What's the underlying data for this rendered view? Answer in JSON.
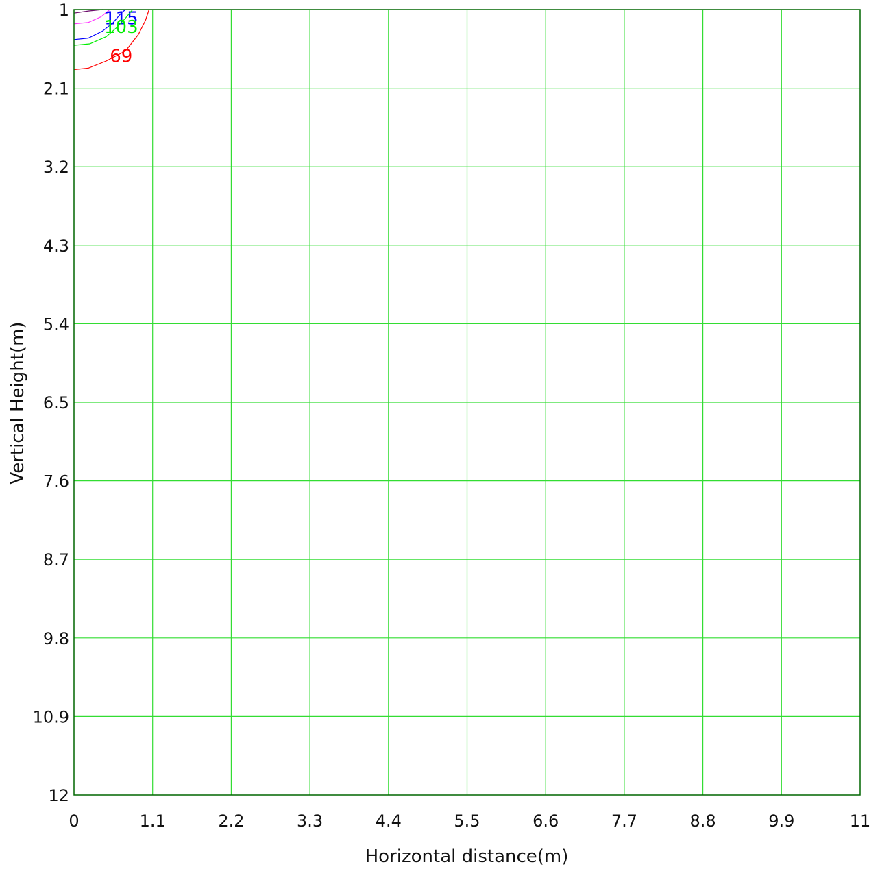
{
  "chart_data": {
    "type": "contour",
    "xlabel": "Horizontal distance(m)",
    "ylabel": "Vertical Height(m)",
    "xlim": [
      0,
      11
    ],
    "ylim": [
      1,
      12
    ],
    "y_axis_inverted": true,
    "grid": true,
    "grid_color": "#33dd33",
    "frame_color": "#006600",
    "x_ticks": [
      "0",
      "1.1",
      "2.2",
      "3.3",
      "4.4",
      "5.5",
      "6.6",
      "7.7",
      "8.8",
      "9.9",
      "11"
    ],
    "y_ticks": [
      "1",
      "2.1",
      "3.2",
      "4.3",
      "5.4",
      "6.5",
      "7.6",
      "8.7",
      "9.8",
      "10.9",
      "12"
    ],
    "contours": [
      {
        "label": "",
        "color": "#6a0a6a",
        "points": [
          [
            0,
            1.05
          ],
          [
            0.2,
            1.02
          ],
          [
            0.4,
            1.0
          ]
        ]
      },
      {
        "label": "",
        "color": "#ff33ff",
        "points": [
          [
            0,
            1.2
          ],
          [
            0.2,
            1.18
          ],
          [
            0.38,
            1.1
          ],
          [
            0.5,
            1.0
          ]
        ]
      },
      {
        "label": "115",
        "color": "#0000ff",
        "label_at": [
          0.66,
          1.12
        ],
        "points": [
          [
            0,
            1.42
          ],
          [
            0.2,
            1.4
          ],
          [
            0.4,
            1.3
          ],
          [
            0.55,
            1.18
          ],
          [
            0.66,
            1.05
          ],
          [
            0.72,
            1.0
          ]
        ]
      },
      {
        "label": "103",
        "color": "#00ee00",
        "label_at": [
          0.66,
          1.24
        ],
        "points": [
          [
            0,
            1.5
          ],
          [
            0.22,
            1.48
          ],
          [
            0.45,
            1.38
          ],
          [
            0.6,
            1.25
          ],
          [
            0.72,
            1.12
          ],
          [
            0.82,
            1.0
          ]
        ]
      },
      {
        "label": "69",
        "color": "#ff0000",
        "label_at": [
          0.66,
          1.65
        ],
        "points": [
          [
            0,
            1.84
          ],
          [
            0.2,
            1.82
          ],
          [
            0.45,
            1.72
          ],
          [
            0.72,
            1.58
          ],
          [
            0.9,
            1.35
          ],
          [
            1.0,
            1.15
          ],
          [
            1.05,
            1.0
          ]
        ]
      }
    ]
  }
}
